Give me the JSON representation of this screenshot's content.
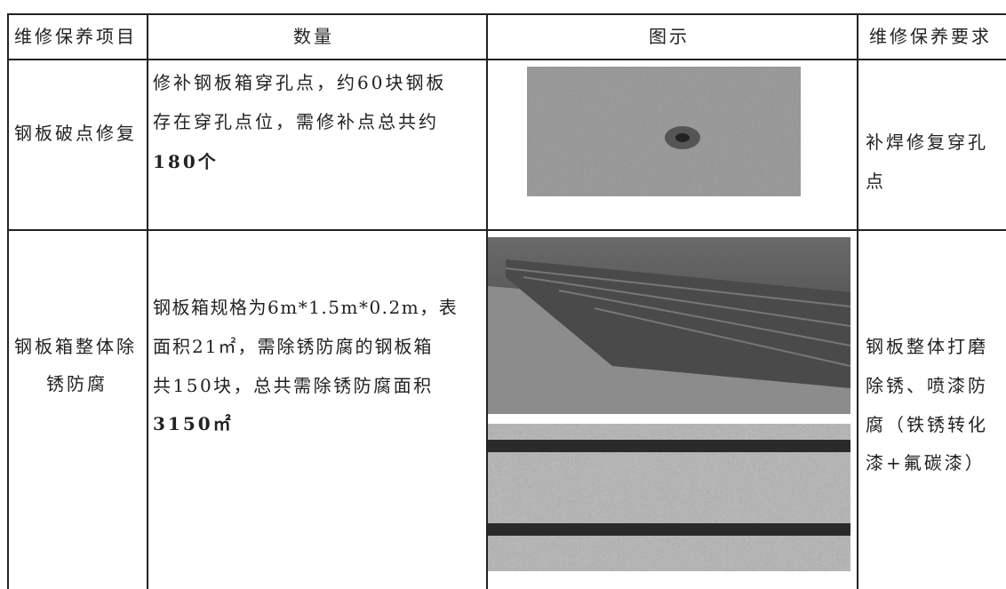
{
  "table": {
    "header": [
      "维修保养项目",
      "数量",
      "图示",
      "维修保养要求"
    ],
    "rows": [
      {
        "item": [
          "钢板破点修复"
        ],
        "quantity": [
          "修补钢板箱穿孔点，约60块钢板",
          "存在穿孔点位，需修补点总共约",
          "180个"
        ],
        "requirement": [
          "补焊修复穿孔",
          "点"
        ]
      },
      {
        "item": [
          "钢板箱整体除",
          "锈防腐"
        ],
        "quantity": [
          "钢板箱规格为6m*1.5m*0.2m，表",
          "面积21㎡，需除锈防腐的钢板箱",
          "共150块，总共需除锈防腐面积",
          "3150㎡"
        ],
        "requirement": [
          "钢板整体打磨",
          "除锈、喷漆防",
          "腐（铁锈转化",
          "漆+氟碳漆）"
        ]
      }
    ]
  }
}
